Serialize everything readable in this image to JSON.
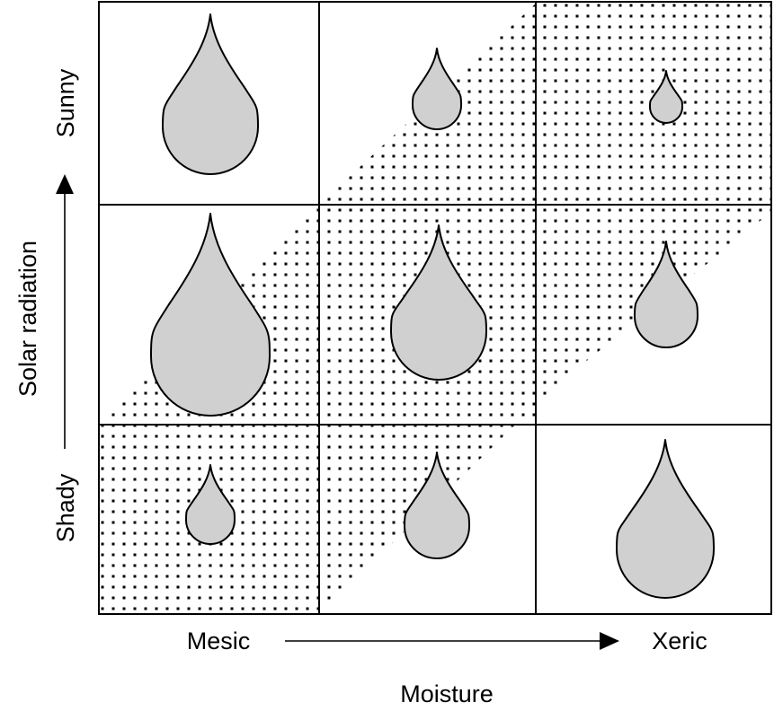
{
  "diagram": {
    "y_axis": {
      "title": "Solar radiation",
      "high_label": "Sunny",
      "low_label": "Shady"
    },
    "x_axis": {
      "title": "Moisture",
      "low_label": "Mesic",
      "high_label": "Xeric"
    },
    "grid": {
      "rows": 3,
      "cols": 3,
      "rows_order": [
        "Sunny",
        "middle",
        "Shady"
      ],
      "cols_order": [
        "Mesic",
        "middle",
        "Xeric"
      ]
    },
    "leaves": [
      {
        "row": "Sunny",
        "col": "Mesic",
        "relative_size": 0.55
      },
      {
        "row": "Sunny",
        "col": "middle",
        "relative_size": 0.29
      },
      {
        "row": "Sunny",
        "col": "Xeric",
        "relative_size": 0.17
      },
      {
        "row": "middle",
        "col": "Mesic",
        "relative_size": 1.0
      },
      {
        "row": "middle",
        "col": "middle",
        "relative_size": 0.69
      },
      {
        "row": "middle",
        "col": "Xeric",
        "relative_size": 0.37
      },
      {
        "row": "Shady",
        "col": "Mesic",
        "relative_size": 0.28
      },
      {
        "row": "Shady",
        "col": "middle",
        "relative_size": 0.37
      },
      {
        "row": "Shady",
        "col": "Xeric",
        "relative_size": 0.57
      }
    ],
    "colors": {
      "leaf_fill": "#d0d0d0",
      "line": "#000000",
      "dots": "#000000"
    }
  }
}
